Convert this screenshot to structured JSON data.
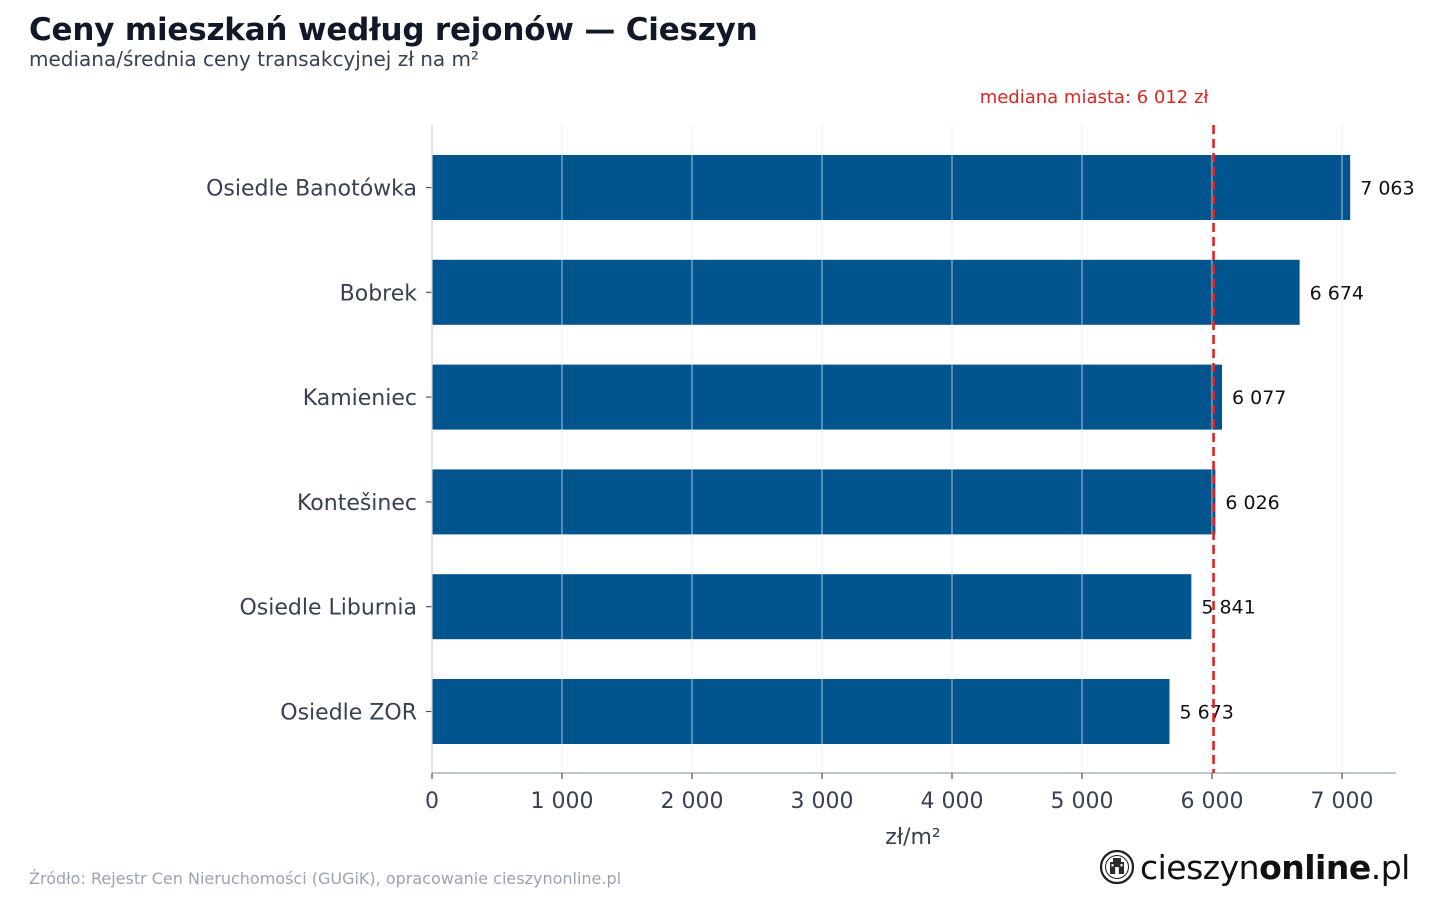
{
  "header": {
    "title": "Ceny mieszkań według rejonów — Cieszyn",
    "subtitle": "mediana/średnia ceny transakcyjnej zł na m²"
  },
  "chart_data": {
    "type": "bar",
    "orientation": "horizontal",
    "categories": [
      "Osiedle Banotówka",
      "Bobrek",
      "Kamieniec",
      "Kontešinec",
      "Osiedle Liburnia",
      "Osiedle ZOR"
    ],
    "values": [
      7063,
      6674,
      6077,
      6026,
      5841,
      5673
    ],
    "value_labels": [
      "7 063",
      "6 674",
      "6 077",
      "6 026",
      "5 841",
      "5 673"
    ],
    "xlabel": "zł/m²",
    "ylabel": "",
    "xlim": [
      0,
      7400
    ],
    "xticks": [
      0,
      1000,
      2000,
      3000,
      4000,
      5000,
      6000,
      7000
    ],
    "xtick_labels": [
      "0",
      "1 000",
      "2 000",
      "3 000",
      "4 000",
      "5 000",
      "6 000",
      "7 000"
    ],
    "grid": "vertical",
    "reference_line": {
      "value": 6012,
      "label": "mediana miasta: 6 012 zł",
      "style": "dashed"
    },
    "colors": {
      "bar": "#01558f",
      "reference": "#dc2626",
      "grid": "#e5e7eb",
      "axis": "#9ca3af",
      "category_text": "#374151",
      "value_text": "#111111"
    }
  },
  "footer": {
    "source": "Źródło: Rejestr Cen Nieruchomości (GUGiK), opracowanie cieszynonline.pl",
    "logo_regular": "cieszyn",
    "logo_bold": "online",
    "logo_suffix": ".pl",
    "logo_icon": "cieszyn-emblem-icon"
  }
}
